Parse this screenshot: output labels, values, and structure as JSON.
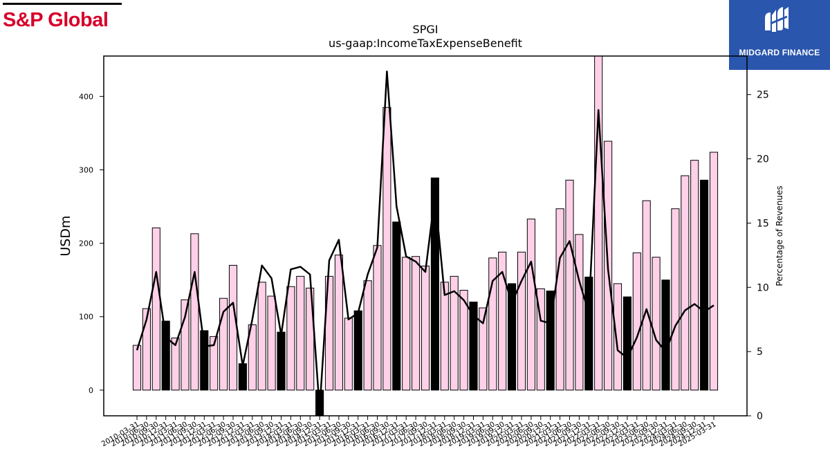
{
  "brand": {
    "left_logo_text": "S&P Global",
    "left_logo_color": "#d6002a",
    "right_logo_text": "MIDGARD FINANCE",
    "right_logo_color": "#2a56ad"
  },
  "chart_data": {
    "type": "bar",
    "title": "SPGI",
    "subtitle": "us-gaap:IncomeTaxExpenseBenefit",
    "ylabel": "USDm",
    "y2label": "Percentage of Revenues",
    "ylim": [
      -35,
      455
    ],
    "y2lim": [
      0,
      28
    ],
    "yticks": [
      0,
      100,
      200,
      300,
      400
    ],
    "y2ticks": [
      0,
      5,
      10,
      15,
      20,
      25
    ],
    "grid": false,
    "categories": [
      "2010-03-31",
      "2010-06-30",
      "2010-09-30",
      "2010-12-31",
      "2011-03-31",
      "2011-06-30",
      "2011-09-30",
      "2011-12-31",
      "2012-03-31",
      "2012-06-30",
      "2012-09-30",
      "2012-12-31",
      "2013-03-31",
      "2013-06-30",
      "2013-09-30",
      "2013-12-31",
      "2014-03-31",
      "2014-06-30",
      "2014-09-30",
      "2014-12-31",
      "2015-03-31",
      "2015-06-30",
      "2015-09-30",
      "2015-12-31",
      "2016-03-31",
      "2016-06-30",
      "2016-09-30",
      "2016-12-31",
      "2017-03-31",
      "2017-06-30",
      "2017-09-30",
      "2017-12-31",
      "2018-03-31",
      "2018-06-30",
      "2018-09-30",
      "2018-12-31",
      "2019-03-31",
      "2019-06-30",
      "2019-09-30",
      "2019-12-31",
      "2020-03-31",
      "2020-06-30",
      "2020-09-30",
      "2020-12-31",
      "2021-03-31",
      "2021-06-30",
      "2021-09-30",
      "2021-12-31",
      "2022-03-31",
      "2022-06-30",
      "2022-09-30",
      "2022-12-31",
      "2023-03-31",
      "2023-06-30",
      "2023-09-30",
      "2023-12-31",
      "2024-03-31",
      "2024-06-30",
      "2024-09-30",
      "2024-12-31",
      "2025-03-31"
    ],
    "x_tick_labels": [
      "2010-03-31",
      "2010-06-30",
      "2010-09-30",
      "2010-12-31",
      "2011-03-31",
      "2011-06-30",
      "2011-09-30",
      "2011-12-31",
      "2012-03-31",
      "2012-06-30",
      "2012-09-30",
      "2012-12-31",
      "2013-03-31",
      "2013-06-30",
      "2013-09-30",
      "2013-12-31",
      "2014-03-31",
      "2014-06-30",
      "2014-09-30",
      "2014-12-31",
      "2015-03-31",
      "2015-06-30",
      "2015-09-30",
      "2015-12-31",
      "2016-03-31",
      "2016-06-30",
      "2016-09-30",
      "2016-12-31",
      "2017-03-31",
      "2017-06-30",
      "2017-09-30",
      "2017-12-31",
      "2018-03-31",
      "2018-06-30",
      "2018-09-30",
      "2018-12-31",
      "2019-03-31",
      "2019-06-30",
      "2019-09-30",
      "2019-12-31",
      "2020-03-31",
      "2020-06-30",
      "2020-09-30",
      "2020-12-31",
      "2021-03-31",
      "2021-06-30",
      "2021-09-30",
      "2021-12-31",
      "2022-03-31",
      "2022-06-30",
      "2022-09-30",
      "2022-12-31",
      "2023-03-31",
      "2023-06-30",
      "2023-09-30",
      "2023-12-31",
      "2024-03-31",
      "2024-06-30",
      "2024-09-30",
      "2024-12-31",
      "2025-03-31"
    ],
    "series": [
      {
        "kind": "bar",
        "axis": "left",
        "values": [
          61,
          111,
          221,
          94,
          71,
          123,
          213,
          81,
          73,
          125,
          170,
          36,
          89,
          147,
          128,
          79,
          141,
          155,
          139,
          -40,
          155,
          184,
          98,
          108,
          149,
          197,
          385,
          229,
          181,
          182,
          169,
          289,
          147,
          155,
          136,
          120,
          112,
          180,
          188,
          145,
          188,
          233,
          138,
          135,
          247,
          286,
          212,
          154,
          460,
          339,
          145,
          127,
          187,
          258,
          181,
          150,
          247,
          292,
          313,
          286,
          324
        ],
        "highlight": [
          false,
          false,
          false,
          true,
          false,
          false,
          false,
          true,
          false,
          false,
          false,
          true,
          false,
          false,
          false,
          true,
          false,
          false,
          false,
          true,
          false,
          false,
          false,
          true,
          false,
          false,
          false,
          true,
          false,
          false,
          false,
          true,
          false,
          false,
          false,
          true,
          false,
          false,
          false,
          true,
          false,
          false,
          false,
          true,
          false,
          false,
          false,
          true,
          false,
          false,
          false,
          true,
          false,
          false,
          false,
          true,
          false,
          false,
          false,
          true,
          false
        ],
        "color": "#ffd1e8",
        "highlight_color": "#000000",
        "edge_color": "#000000"
      },
      {
        "kind": "line",
        "axis": "right",
        "values": [
          5.1,
          7.5,
          11.2,
          6.1,
          5.5,
          7.7,
          11.2,
          5.4,
          5.5,
          8.1,
          8.8,
          3.9,
          7.5,
          11.7,
          10.7,
          6.3,
          11.4,
          11.6,
          11.0,
          0.5,
          12.1,
          13.7,
          7.5,
          8.0,
          11.0,
          13.1,
          26.8,
          16.3,
          12.4,
          12.0,
          11.2,
          17.2,
          9.4,
          9.7,
          9.0,
          7.8,
          7.2,
          10.5,
          11.2,
          8.8,
          10.5,
          12.0,
          7.4,
          7.2,
          12.3,
          13.6,
          10.5,
          8.0,
          23.8,
          11.4,
          5.1,
          4.5,
          6.1,
          8.3,
          5.9,
          5.0,
          7.0,
          8.2,
          8.7,
          8.1,
          8.6
        ],
        "color": "#000000"
      }
    ]
  }
}
